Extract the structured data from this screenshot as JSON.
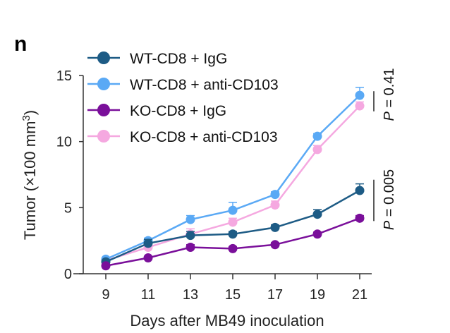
{
  "panel_label": "n",
  "chart_data": {
    "type": "line",
    "title": "",
    "xlabel": "Days after MB49 inoculation",
    "ylabel": "Tumor (×100 mm³)",
    "x": [
      9,
      11,
      13,
      15,
      17,
      19,
      21
    ],
    "x_tick_labels": [
      "9",
      "11",
      "13",
      "15",
      "17",
      "19",
      "21"
    ],
    "xlim": [
      7.5,
      22.5
    ],
    "ylim": [
      0,
      15
    ],
    "y_ticks": [
      0,
      5,
      10,
      15
    ],
    "y_tick_labels": [
      "0",
      "5",
      "10",
      "15"
    ],
    "grid": false,
    "legend_position": "top-left",
    "series": [
      {
        "name": "WT-CD8 + IgG",
        "color": "#1d5b85",
        "values": [
          0.9,
          2.3,
          2.9,
          3.0,
          3.5,
          4.5,
          6.3
        ],
        "errors": [
          0.1,
          0.3,
          0.3,
          0.2,
          0.2,
          0.35,
          0.5
        ]
      },
      {
        "name": "WT-CD8 + anti-CD103",
        "color": "#5aa9f5",
        "values": [
          1.1,
          2.5,
          4.1,
          4.8,
          6.0,
          10.4,
          13.5
        ],
        "errors": [
          0.1,
          0.2,
          0.3,
          0.6,
          0.2,
          0.2,
          0.6
        ]
      },
      {
        "name": "KO-CD8 + IgG",
        "color": "#7a0f9a",
        "values": [
          0.6,
          1.2,
          2.0,
          1.9,
          2.2,
          3.0,
          4.2
        ],
        "errors": [
          0.1,
          0.1,
          0.2,
          0.15,
          0.15,
          0.15,
          0.2
        ]
      },
      {
        "name": "KO-CD8 + anti-CD103",
        "color": "#f5a8e0",
        "values": [
          1.0,
          2.0,
          3.0,
          3.9,
          5.2,
          9.4,
          12.7
        ],
        "errors": [
          0.1,
          0.2,
          0.4,
          0.3,
          0.3,
          0.3,
          0.3
        ]
      }
    ],
    "annotations": [
      {
        "text": "P = 0.41",
        "compares": [
          "WT-CD8 + anti-CD103",
          "KO-CD8 + anti-CD103"
        ],
        "at_x": 21
      },
      {
        "text": "P = 0.005",
        "compares": [
          "WT-CD8 + IgG",
          "KO-CD8 + IgG"
        ],
        "at_x": 21
      }
    ]
  }
}
